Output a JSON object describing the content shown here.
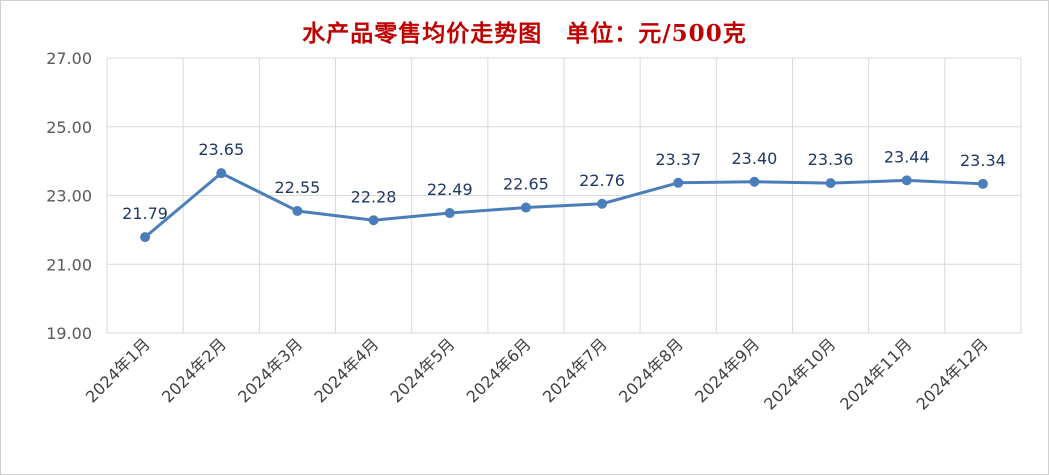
{
  "chart_data": {
    "type": "line",
    "title": "水产品零售均价走势图　单位：元/500克",
    "categories": [
      "2024年1月",
      "2024年2月",
      "2024年3月",
      "2024年4月",
      "2024年5月",
      "2024年6月",
      "2024年7月",
      "2024年8月",
      "2024年9月",
      "2024年10月",
      "2024年11月",
      "2024年12月"
    ],
    "values": [
      21.79,
      23.65,
      22.55,
      22.28,
      22.49,
      22.65,
      22.76,
      23.37,
      23.4,
      23.36,
      23.44,
      23.34
    ],
    "data_labels": [
      "21.79",
      "23.65",
      "22.55",
      "22.28",
      "22.49",
      "22.65",
      "22.76",
      "23.37",
      "23.40",
      "23.36",
      "23.44",
      "23.34"
    ],
    "y_ticks": [
      "19.00",
      "21.00",
      "23.00",
      "25.00",
      "27.00"
    ],
    "ylim": [
      19,
      27
    ],
    "grid": true,
    "legend": "none",
    "line_color": "#4a7ebb",
    "label_color": "#1f3864",
    "title_color": "#c00000"
  }
}
